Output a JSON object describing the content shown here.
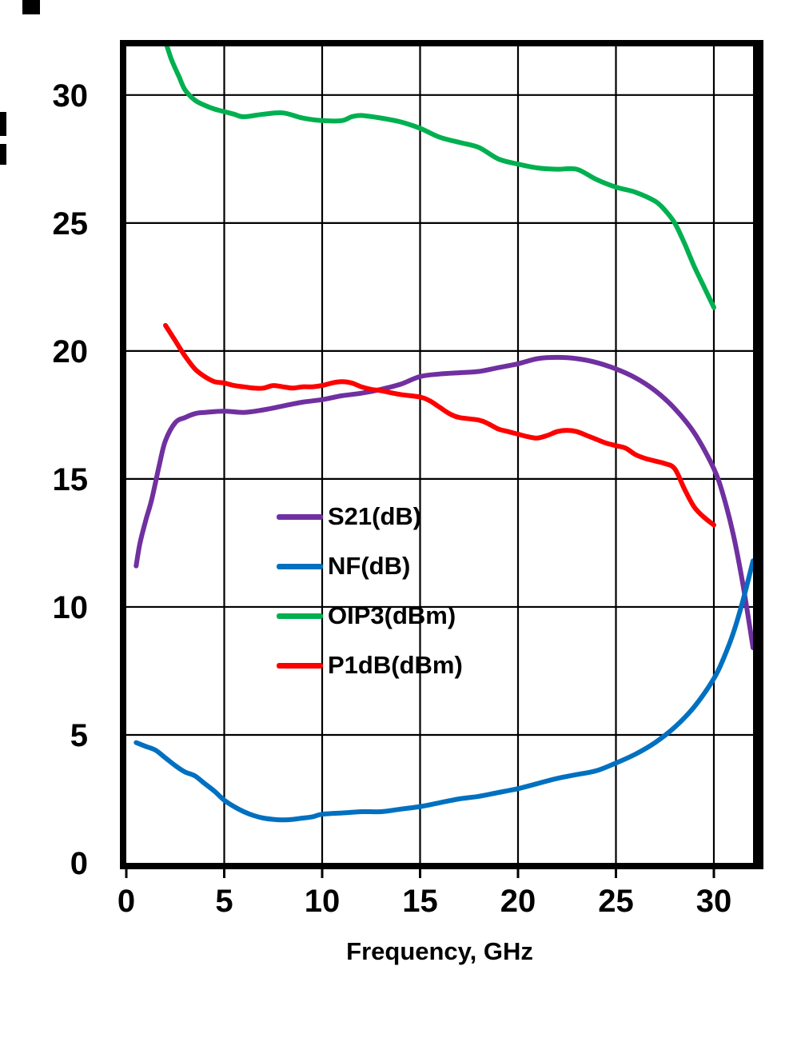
{
  "chart_data": {
    "type": "line",
    "title": "",
    "xlabel": "Frequency, GHz",
    "ylabel": "",
    "xlim": [
      0,
      32
    ],
    "ylim": [
      0,
      31.9
    ],
    "xticks": [
      0,
      5,
      10,
      15,
      20,
      25,
      30
    ],
    "yticks": [
      0,
      5,
      10,
      15,
      20,
      25,
      30
    ],
    "grid": true,
    "legend_position": "center-left",
    "series": [
      {
        "name": "S21(dB)",
        "color": "#7030A0",
        "x": [
          0.5,
          0.7,
          1,
          1.3,
          1.7,
          2,
          2.5,
          3,
          3.5,
          4,
          5,
          6,
          7,
          8,
          9,
          10,
          11,
          12,
          13,
          14,
          15,
          16,
          17,
          18,
          19,
          20,
          21,
          22,
          23,
          24,
          25,
          26,
          27,
          28,
          29,
          30,
          30.5,
          31,
          31.5,
          32
        ],
        "values": [
          11.6,
          12.5,
          13.4,
          14.2,
          15.6,
          16.5,
          17.2,
          17.4,
          17.55,
          17.6,
          17.65,
          17.6,
          17.7,
          17.85,
          18.0,
          18.1,
          18.25,
          18.35,
          18.5,
          18.7,
          19.0,
          19.1,
          19.15,
          19.2,
          19.35,
          19.5,
          19.7,
          19.75,
          19.7,
          19.55,
          19.3,
          18.95,
          18.45,
          17.75,
          16.8,
          15.4,
          14.3,
          12.8,
          10.8,
          8.4
        ]
      },
      {
        "name": "NF(dB)",
        "color": "#0070C0",
        "x": [
          0.5,
          1,
          1.5,
          2,
          2.5,
          3,
          3.5,
          4,
          4.5,
          5,
          5.5,
          6,
          6.5,
          7,
          7.5,
          8,
          8.5,
          9,
          9.5,
          10,
          11,
          12,
          13,
          14,
          15,
          16,
          17,
          18,
          19,
          20,
          21,
          22,
          23,
          24,
          25,
          26,
          27,
          28,
          29,
          30,
          30.5,
          31,
          31.5,
          32
        ],
        "values": [
          4.7,
          4.55,
          4.4,
          4.1,
          3.8,
          3.55,
          3.4,
          3.1,
          2.8,
          2.45,
          2.2,
          2.0,
          1.85,
          1.75,
          1.7,
          1.68,
          1.7,
          1.75,
          1.8,
          1.9,
          1.95,
          2.0,
          2.0,
          2.1,
          2.2,
          2.35,
          2.5,
          2.6,
          2.75,
          2.9,
          3.1,
          3.3,
          3.45,
          3.6,
          3.9,
          4.25,
          4.7,
          5.3,
          6.1,
          7.2,
          8.0,
          9.0,
          10.3,
          11.8
        ]
      },
      {
        "name": "OIP3(dBm)",
        "color": "#00B050",
        "x": [
          2,
          2.3,
          2.7,
          3,
          3.5,
          4,
          4.5,
          5,
          5.5,
          6,
          7,
          8,
          9,
          10,
          11,
          11.5,
          12,
          13,
          14,
          15,
          16,
          17,
          18,
          19,
          20,
          21,
          22,
          23,
          24,
          25,
          26,
          27,
          27.5,
          28,
          28.5,
          29,
          29.5,
          30
        ],
        "values": [
          32.1,
          31.4,
          30.7,
          30.2,
          29.8,
          29.6,
          29.45,
          29.35,
          29.25,
          29.15,
          29.25,
          29.3,
          29.1,
          29.0,
          29.0,
          29.15,
          29.2,
          29.1,
          28.95,
          28.7,
          28.35,
          28.15,
          27.95,
          27.5,
          27.3,
          27.15,
          27.1,
          27.1,
          26.7,
          26.4,
          26.2,
          25.85,
          25.5,
          25.0,
          24.2,
          23.3,
          22.5,
          21.7
        ]
      },
      {
        "name": "P1dB(dBm)",
        "color": "#FF0000",
        "x": [
          2,
          2.5,
          3,
          3.5,
          4,
          4.5,
          5,
          5.5,
          6,
          6.5,
          7,
          7.5,
          8,
          8.5,
          9,
          9.5,
          10,
          10.5,
          11,
          11.5,
          12,
          12.5,
          13,
          14,
          15,
          15.5,
          16,
          16.5,
          17,
          18,
          18.5,
          19,
          19.5,
          20,
          20.5,
          21,
          21.5,
          22,
          22.5,
          23,
          23.5,
          24,
          24.5,
          25,
          25.5,
          26,
          26.5,
          27,
          27.5,
          28,
          28.5,
          29,
          29.5,
          30
        ],
        "values": [
          21.0,
          20.4,
          19.8,
          19.3,
          19.0,
          18.8,
          18.75,
          18.65,
          18.6,
          18.55,
          18.55,
          18.65,
          18.6,
          18.55,
          18.6,
          18.6,
          18.65,
          18.75,
          18.8,
          18.75,
          18.6,
          18.5,
          18.45,
          18.3,
          18.2,
          18.05,
          17.8,
          17.55,
          17.4,
          17.3,
          17.15,
          16.95,
          16.85,
          16.75,
          16.65,
          16.6,
          16.7,
          16.85,
          16.9,
          16.85,
          16.7,
          16.55,
          16.4,
          16.3,
          16.2,
          15.95,
          15.8,
          15.7,
          15.6,
          15.4,
          14.6,
          13.9,
          13.5,
          13.2
        ]
      }
    ]
  }
}
